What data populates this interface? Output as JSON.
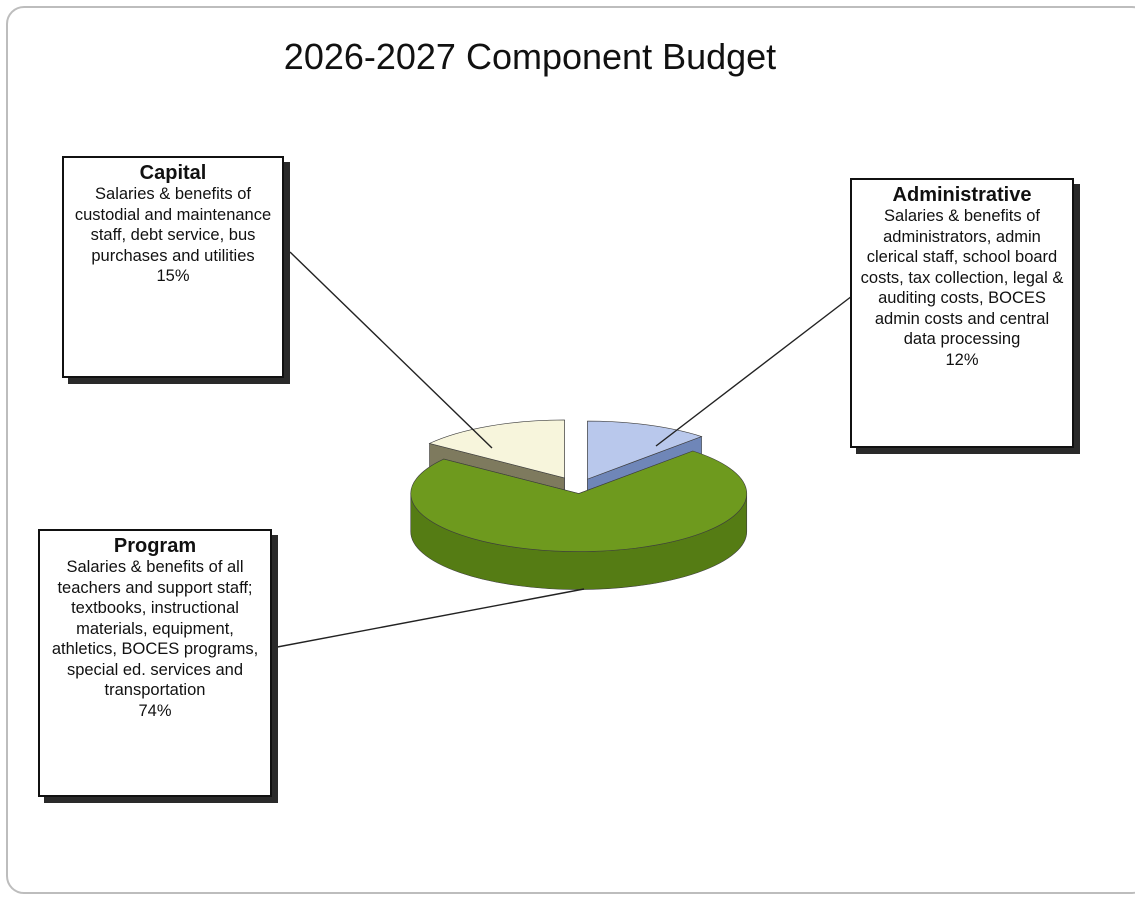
{
  "chart_data": {
    "type": "pie",
    "title": "2026-2027 Component Budget",
    "style": "3d-exploded",
    "slices": [
      {
        "label": "Administrative",
        "description": "Salaries & benefits of administrators, admin clerical staff, school board costs, tax collection, legal & auditing costs, BOCES admin costs  and central data processing",
        "value": 12,
        "value_label": "12%",
        "color": "#b9c8ec",
        "side_color": "#6f86b8"
      },
      {
        "label": "Program",
        "description": "Salaries & benefits of all teachers and support staff; textbooks, instructional materials, equipment, athletics, BOCES programs, special ed. services and transportation",
        "value": 74,
        "value_label": "74%",
        "color": "#6e9a1e",
        "side_color": "#557c14"
      },
      {
        "label": "Capital",
        "description": "Salaries & benefits of custodial and maintenance staff, debt service, bus purchases and utilities",
        "value": 15,
        "value_label": "15%",
        "color": "#f7f5dc",
        "side_color": "#7e7a5e"
      }
    ]
  }
}
